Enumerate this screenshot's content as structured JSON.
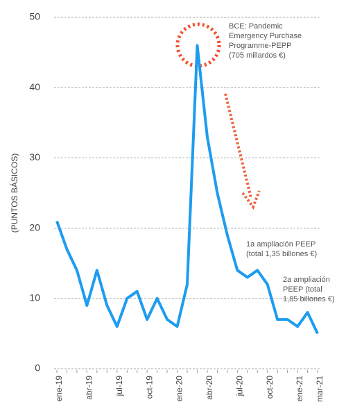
{
  "chart_data": {
    "type": "line",
    "y_label": "(PUNTOS BÁSICOS)",
    "categories": [
      "ene-19",
      null,
      null,
      "abr-19",
      null,
      null,
      "jul-19",
      null,
      null,
      "oct-19",
      null,
      null,
      "ene-20",
      null,
      null,
      "abr-20",
      null,
      null,
      "jul-20",
      null,
      null,
      "oct-20",
      null,
      null,
      "ene-21",
      null,
      "mar-21"
    ],
    "series": [
      {
        "name": "Puntos básicos",
        "color": "#1e9cf0",
        "values": [
          21,
          17,
          14,
          9,
          14,
          9,
          6,
          10,
          11,
          7,
          10,
          7,
          6,
          12,
          46,
          33,
          25,
          19,
          14,
          13,
          14,
          12,
          7,
          7,
          6,
          8,
          5
        ]
      }
    ],
    "ylim": [
      0,
      50
    ],
    "yticks": [
      0,
      10,
      20,
      30,
      40,
      50
    ],
    "grid": true,
    "annotations": [
      [
        "BCE: Pandemic",
        "Emergency Purchase",
        "Programme-PEPP",
        "(705 millardos €)"
      ],
      [
        "1a ampliación PEEP",
        "(total 1,35 billones €)"
      ],
      [
        "2a ampliación",
        "PEEP (total",
        "1,85 billones €)"
      ]
    ]
  }
}
